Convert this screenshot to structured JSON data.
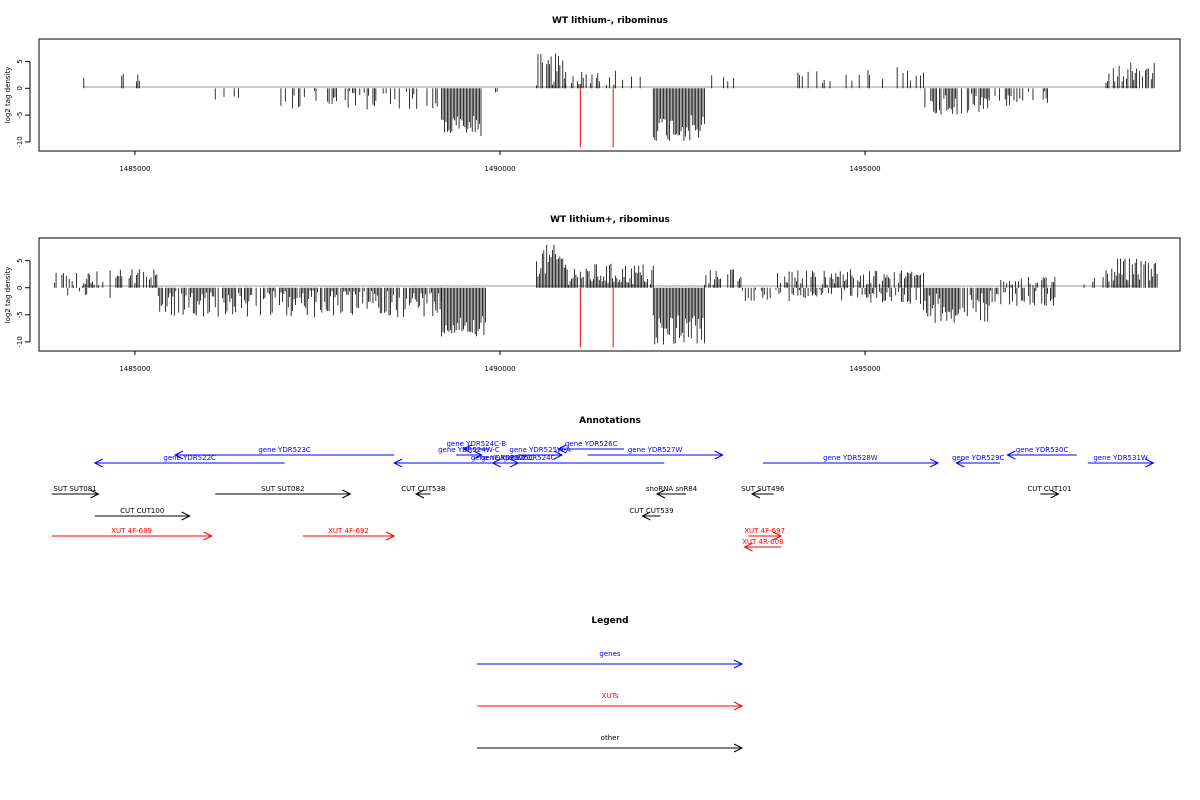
{
  "colors": {
    "genes": "#0000ff",
    "xuts": "#ff0000",
    "other": "#000000",
    "red_marker": "#ff0000"
  },
  "chart_data": [
    {
      "type": "bar",
      "title": "WT lithium-, ribominus",
      "ylabel": "log2 tag density",
      "xlim": [
        1483700,
        1499300
      ],
      "ylim": [
        -11.5,
        9
      ],
      "yticks": [
        5,
        0,
        -5,
        -10
      ],
      "xticks": [
        1485000,
        1490000,
        1495000
      ],
      "xtick_labels": [
        "1485000",
        "1490000",
        "1495000"
      ],
      "data_range": [
        1483900,
        1499000
      ],
      "markers": [
        1491100,
        1491550
      ],
      "segments": [
        {
          "from": 1483900,
          "to": 1485100,
          "sign": 1,
          "density": 0.15,
          "min": 0.5,
          "max": 3.6
        },
        {
          "from": 1486100,
          "to": 1486500,
          "sign": -1,
          "density": 0.25,
          "min": 0.5,
          "max": 2.5
        },
        {
          "from": 1487000,
          "to": 1489200,
          "sign": -1,
          "density": 0.4,
          "min": 0.5,
          "max": 4
        },
        {
          "from": 1489200,
          "to": 1489750,
          "sign": -1,
          "density": 1.0,
          "min": 5,
          "max": 9
        },
        {
          "from": 1489800,
          "to": 1490000,
          "sign": -1,
          "density": 0.3,
          "min": 0.5,
          "max": 1.5
        },
        {
          "from": 1490500,
          "to": 1490900,
          "sign": 1,
          "density": 0.8,
          "min": 0.5,
          "max": 6.5
        },
        {
          "from": 1490900,
          "to": 1491700,
          "sign": 1,
          "density": 0.3,
          "min": 0.5,
          "max": 3.5
        },
        {
          "from": 1491700,
          "to": 1492100,
          "sign": 1,
          "density": 0.15,
          "min": 0.5,
          "max": 3.5
        },
        {
          "from": 1492100,
          "to": 1492800,
          "sign": -1,
          "density": 1.0,
          "min": 5,
          "max": 10
        },
        {
          "from": 1492800,
          "to": 1493200,
          "sign": 1,
          "density": 0.2,
          "min": 0.5,
          "max": 3
        },
        {
          "from": 1494000,
          "to": 1495200,
          "sign": 1,
          "density": 0.25,
          "min": 0.5,
          "max": 3.5
        },
        {
          "from": 1495200,
          "to": 1495800,
          "sign": 1,
          "density": 0.3,
          "min": 0.5,
          "max": 4
        },
        {
          "from": 1495800,
          "to": 1496700,
          "sign": -1,
          "density": 0.7,
          "min": 1,
          "max": 5
        },
        {
          "from": 1496700,
          "to": 1497500,
          "sign": -1,
          "density": 0.3,
          "min": 0.5,
          "max": 3.5
        },
        {
          "from": 1498300,
          "to": 1499000,
          "sign": 1,
          "density": 0.6,
          "min": 1,
          "max": 5
        }
      ]
    },
    {
      "type": "bar",
      "title": "WT lithium+, ribominus",
      "ylabel": "log2 tag density",
      "xlim": [
        1483700,
        1499300
      ],
      "ylim": [
        -11.5,
        9
      ],
      "yticks": [
        5,
        0,
        -5,
        -10
      ],
      "xticks": [
        1485000,
        1490000,
        1495000
      ],
      "xtick_labels": [
        "1485000",
        "1490000",
        "1495000"
      ],
      "data_range": [
        1483900,
        1499000
      ],
      "markers": [
        1491100,
        1491550
      ],
      "segments": [
        {
          "from": 1483900,
          "to": 1485300,
          "sign": 1,
          "density": 0.6,
          "min": 0.3,
          "max": 3.5
        },
        {
          "from": 1484000,
          "to": 1484700,
          "sign": -1,
          "density": 0.2,
          "min": 0.3,
          "max": 2
        },
        {
          "from": 1485300,
          "to": 1487000,
          "sign": -1,
          "density": 0.8,
          "min": 0.5,
          "max": 5.5
        },
        {
          "from": 1487000,
          "to": 1489200,
          "sign": -1,
          "density": 0.9,
          "min": 0.5,
          "max": 5.5
        },
        {
          "from": 1489200,
          "to": 1489800,
          "sign": -1,
          "density": 1.0,
          "min": 5,
          "max": 9
        },
        {
          "from": 1490500,
          "to": 1490900,
          "sign": 1,
          "density": 1.0,
          "min": 2,
          "max": 8
        },
        {
          "from": 1490900,
          "to": 1492100,
          "sign": 1,
          "density": 0.9,
          "min": 0.5,
          "max": 4.5
        },
        {
          "from": 1492100,
          "to": 1492800,
          "sign": -1,
          "density": 1.0,
          "min": 5,
          "max": 10.5
        },
        {
          "from": 1492800,
          "to": 1493300,
          "sign": 1,
          "density": 0.6,
          "min": 0.5,
          "max": 3.5
        },
        {
          "from": 1493300,
          "to": 1495000,
          "sign": -1,
          "density": 0.5,
          "min": 0.3,
          "max": 2.5
        },
        {
          "from": 1493800,
          "to": 1495800,
          "sign": 1,
          "density": 0.7,
          "min": 0.5,
          "max": 3.5
        },
        {
          "from": 1495000,
          "to": 1495800,
          "sign": -1,
          "density": 0.6,
          "min": 0.5,
          "max": 3
        },
        {
          "from": 1495800,
          "to": 1496700,
          "sign": -1,
          "density": 0.9,
          "min": 1,
          "max": 6.5
        },
        {
          "from": 1496700,
          "to": 1497600,
          "sign": -1,
          "density": 0.6,
          "min": 0.5,
          "max": 3.5
        },
        {
          "from": 1496800,
          "to": 1497600,
          "sign": 1,
          "density": 0.5,
          "min": 0.5,
          "max": 2
        },
        {
          "from": 1498000,
          "to": 1498300,
          "sign": 1,
          "density": 0.4,
          "min": 0.5,
          "max": 2
        },
        {
          "from": 1498300,
          "to": 1499000,
          "sign": 1,
          "density": 0.9,
          "min": 1,
          "max": 5.5
        }
      ]
    }
  ],
  "annotations": {
    "title": "Annotations",
    "items": [
      {
        "label": "gene YDR522C",
        "cls": "genes",
        "from": 1484450,
        "to": 1487050,
        "strand": "-"
      },
      {
        "label": "gene YDR523C",
        "cls": "genes",
        "from": 1485550,
        "to": 1488550,
        "strand": "-"
      },
      {
        "label": "gene YDR524C",
        "cls": "genes",
        "from": 1488550,
        "to": 1492250,
        "strand": "-"
      },
      {
        "label": "gene YDR524W-C",
        "cls": "genes",
        "from": 1489400,
        "to": 1489750,
        "strand": "+"
      },
      {
        "label": "gene YDR524C-B",
        "cls": "genes",
        "from": 1489500,
        "to": 1489850,
        "strand": "-"
      },
      {
        "label": "gene YDR525W",
        "cls": "genes",
        "from": 1489700,
        "to": 1490250,
        "strand": "+"
      },
      {
        "label": "gene YDR525C",
        "cls": "genes",
        "from": 1489900,
        "to": 1490300,
        "strand": "-"
      },
      {
        "label": "gene YDR525W-A",
        "cls": "genes",
        "from": 1490250,
        "to": 1490850,
        "strand": "+"
      },
      {
        "label": "gene YDR526C",
        "cls": "genes",
        "from": 1490800,
        "to": 1491700,
        "strand": "-"
      },
      {
        "label": "gene YDR527W",
        "cls": "genes",
        "from": 1491200,
        "to": 1493050,
        "strand": "+"
      },
      {
        "label": "gene YDR528W",
        "cls": "genes",
        "from": 1493600,
        "to": 1496000,
        "strand": "+"
      },
      {
        "label": "gene YDR529C",
        "cls": "genes",
        "from": 1496250,
        "to": 1496850,
        "strand": "-"
      },
      {
        "label": "gene YDR530C",
        "cls": "genes",
        "from": 1496950,
        "to": 1497900,
        "strand": "-"
      },
      {
        "label": "gene YDR531W",
        "cls": "genes",
        "from": 1498050,
        "to": 1498950,
        "strand": "+"
      },
      {
        "label": "snoRNA snR84",
        "cls": "other",
        "from": 1492150,
        "to": 1492550,
        "strand": "-"
      },
      {
        "label": "SUT SUT081",
        "cls": "other",
        "from": 1483860,
        "to": 1484500,
        "strand": "+"
      },
      {
        "label": "CUT CUT100",
        "cls": "other",
        "from": 1484450,
        "to": 1485750,
        "strand": "+"
      },
      {
        "label": "SUT SUT082",
        "cls": "other",
        "from": 1486100,
        "to": 1487950,
        "strand": "+"
      },
      {
        "label": "CUT CUT538",
        "cls": "other",
        "from": 1488850,
        "to": 1489050,
        "strand": "-"
      },
      {
        "label": "CUT CUT539",
        "cls": "other",
        "from": 1491950,
        "to": 1492200,
        "strand": "-"
      },
      {
        "label": "SUT SUT496",
        "cls": "other",
        "from": 1493450,
        "to": 1493750,
        "strand": "-"
      },
      {
        "label": "CUT CUT101",
        "cls": "other",
        "from": 1497400,
        "to": 1497650,
        "strand": "+"
      },
      {
        "label": "XUT 4F-689",
        "cls": "xuts",
        "from": 1483860,
        "to": 1486050,
        "strand": "+"
      },
      {
        "label": "XUT 4F-692",
        "cls": "xuts",
        "from": 1487300,
        "to": 1488550,
        "strand": "+"
      },
      {
        "label": "XUT 4F-697",
        "cls": "xuts",
        "from": 1493400,
        "to": 1493850,
        "strand": "+"
      },
      {
        "label": "XUT 4R-608",
        "cls": "xuts",
        "from": 1493350,
        "to": 1493850,
        "strand": "-"
      }
    ]
  },
  "legend": {
    "title": "Legend",
    "entries": [
      {
        "label": "genes",
        "cls": "genes"
      },
      {
        "label": "XUTs",
        "cls": "xuts"
      },
      {
        "label": "other",
        "cls": "other"
      }
    ]
  }
}
